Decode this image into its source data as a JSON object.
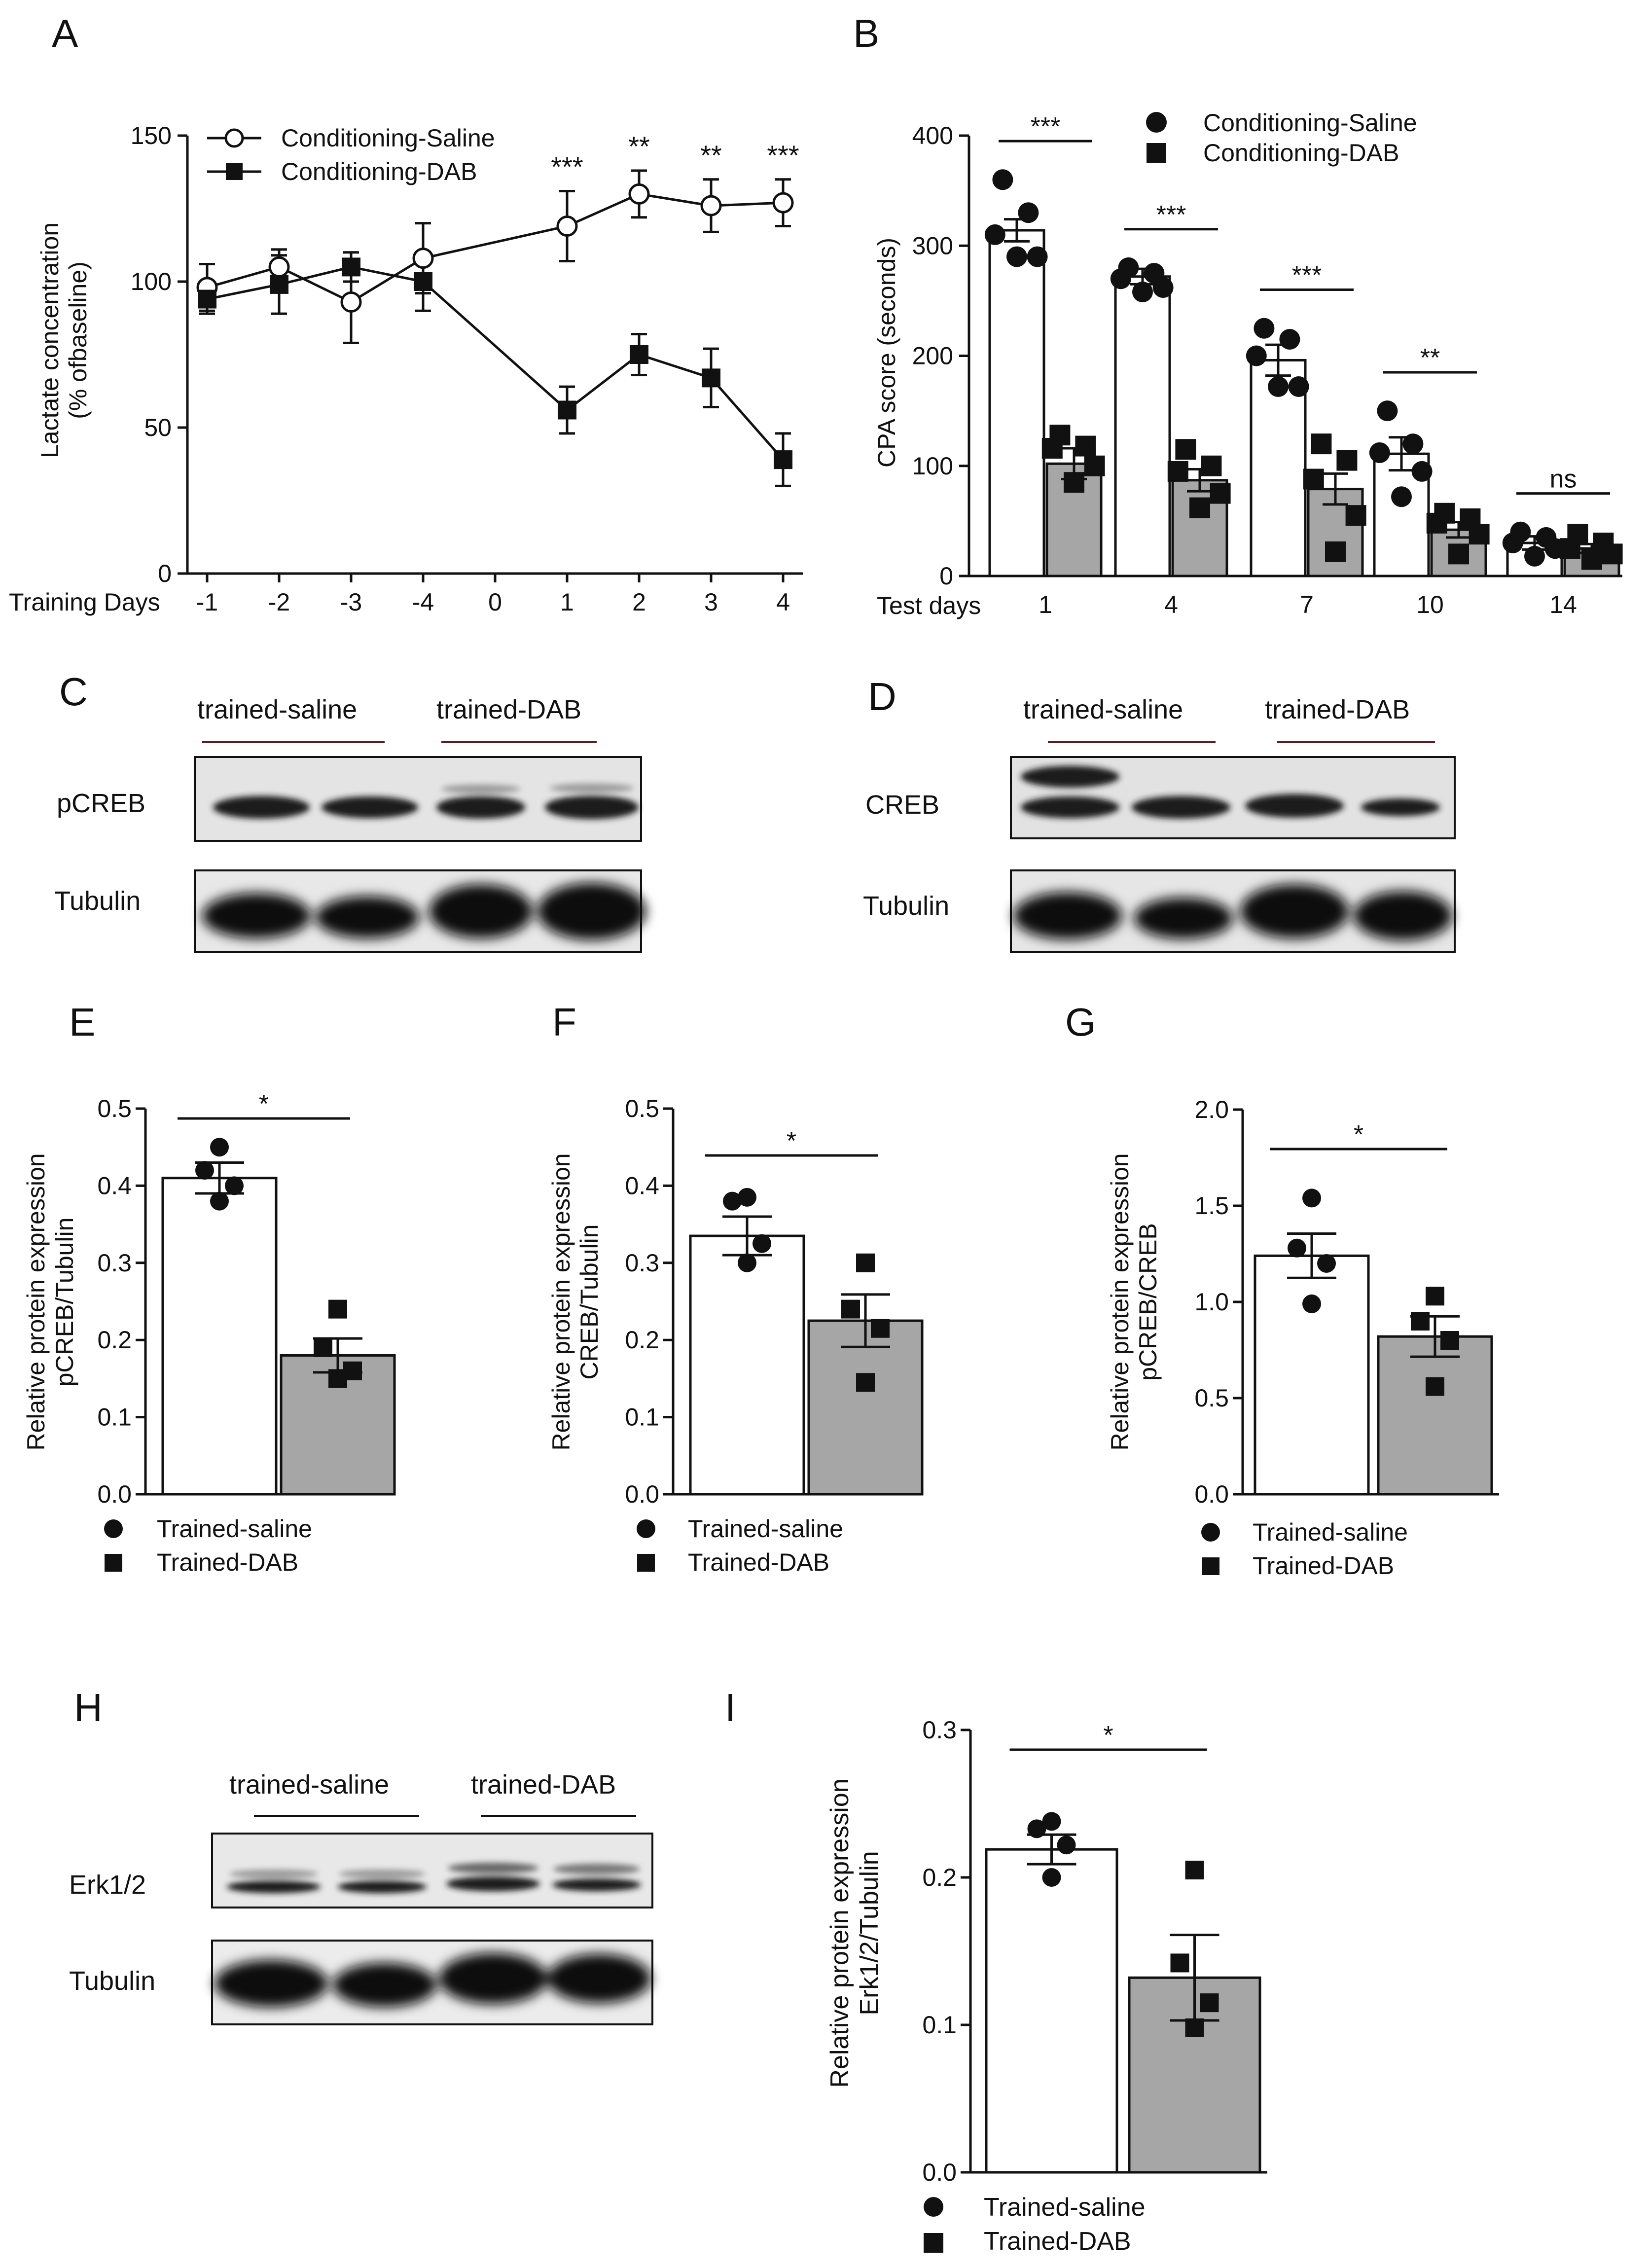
{
  "figure": {
    "panel_labels": [
      "A",
      "B",
      "C",
      "D",
      "E",
      "F",
      "G",
      "H",
      "I"
    ]
  },
  "colors": {
    "ink": "#111111",
    "gray_bar": "#a6a6a6",
    "white_bar": "#ffffff"
  },
  "chart_data": [
    {
      "panel": "A",
      "type": "line",
      "ylabel_lines": [
        "Lactate concentration",
        "(% ofbaseline)"
      ],
      "xlabel": "Training Days",
      "categories": [
        "-1",
        "-2",
        "-3",
        "-4",
        "0",
        "1",
        "2",
        "3",
        "4"
      ],
      "ylim": [
        0,
        150
      ],
      "yticks": [
        0,
        50,
        100,
        150
      ],
      "series": [
        {
          "name": "Conditioning-Saline",
          "marker": "open-circle",
          "x": [
            "-1",
            "-2",
            "-3",
            "-4",
            "1",
            "2",
            "3",
            "4"
          ],
          "values": [
            98,
            105,
            93,
            108,
            119,
            130,
            126,
            127
          ],
          "err": [
            8,
            6,
            14,
            12,
            12,
            8,
            9,
            8
          ]
        },
        {
          "name": "Conditioning-DAB",
          "marker": "filled-square",
          "x": [
            "-1",
            "-2",
            "-3",
            "-4",
            "1",
            "2",
            "3",
            "4"
          ],
          "values": [
            94,
            99,
            105,
            100,
            56,
            75,
            67,
            39
          ],
          "err": [
            5,
            10,
            5,
            10,
            8,
            7,
            10,
            9
          ]
        }
      ],
      "annotations": [
        {
          "x": "1",
          "text": "***"
        },
        {
          "x": "2",
          "text": "**"
        },
        {
          "x": "3",
          "text": "**"
        },
        {
          "x": "4",
          "text": "***"
        }
      ]
    },
    {
      "panel": "B",
      "type": "bar",
      "ylabel": "CPA score (seconds)",
      "xlabel": "Test days",
      "categories": [
        "1",
        "4",
        "7",
        "10",
        "14"
      ],
      "ylim": [
        0,
        400
      ],
      "yticks": [
        0,
        100,
        200,
        300,
        400
      ],
      "series": [
        {
          "name": "Conditioning-Saline",
          "marker": "filled-circle",
          "fill": "white",
          "values": [
            314,
            272,
            196,
            111,
            30
          ],
          "err": [
            10,
            7,
            14,
            15,
            6
          ],
          "points": [
            [
              360,
              330,
              310,
              290,
              290
            ],
            [
              280,
              275,
              270,
              262,
              258
            ],
            [
              225,
              215,
              200,
              172,
              172
            ],
            [
              150,
              120,
              112,
              95,
              72
            ],
            [
              40,
              35,
              30,
              25,
              18
            ]
          ]
        },
        {
          "name": "Conditioning-DAB",
          "marker": "filled-square",
          "fill": "gray",
          "values": [
            102,
            87,
            79,
            42,
            25
          ],
          "err": [
            14,
            10,
            14,
            7,
            4
          ],
          "points": [
            [
              128,
              118,
              116,
              100,
              85
            ],
            [
              115,
              100,
              95,
              75,
              62
            ],
            [
              120,
              105,
              88,
              55,
              22
            ],
            [
              57,
              52,
              48,
              38,
              20
            ],
            [
              38,
              30,
              25,
              20,
              15
            ]
          ]
        }
      ],
      "annotations": [
        {
          "x": "1",
          "text": "***"
        },
        {
          "x": "4",
          "text": "***"
        },
        {
          "x": "7",
          "text": "***"
        },
        {
          "x": "10",
          "text": "**"
        },
        {
          "x": "14",
          "text": "ns"
        }
      ]
    },
    {
      "panel": "E",
      "type": "bar",
      "ylabel_lines": [
        "Relative protein expression",
        "pCREB/Tubulin"
      ],
      "ylim": [
        0,
        0.5
      ],
      "yticks": [
        "0.0",
        "0.1",
        "0.2",
        "0.3",
        "0.4",
        "0.5"
      ],
      "series": [
        {
          "name": "Trained-saline",
          "marker": "filled-circle",
          "fill": "white",
          "value": 0.41,
          "err": 0.02,
          "points": [
            0.45,
            0.42,
            0.4,
            0.38
          ]
        },
        {
          "name": "Trained-DAB",
          "marker": "filled-square",
          "fill": "gray",
          "value": 0.18,
          "err": 0.022,
          "points": [
            0.24,
            0.19,
            0.16,
            0.15
          ]
        }
      ],
      "significance": "*"
    },
    {
      "panel": "F",
      "type": "bar",
      "ylabel_lines": [
        "Relative protein expression",
        "CREB/Tubulin"
      ],
      "ylim": [
        0,
        0.5
      ],
      "yticks": [
        "0.0",
        "0.1",
        "0.2",
        "0.3",
        "0.4",
        "0.5"
      ],
      "series": [
        {
          "name": "Trained-saline",
          "marker": "filled-circle",
          "fill": "white",
          "value": 0.335,
          "err": 0.025,
          "points": [
            0.385,
            0.38,
            0.325,
            0.3
          ]
        },
        {
          "name": "Trained-DAB",
          "marker": "filled-square",
          "fill": "gray",
          "value": 0.225,
          "err": 0.034,
          "points": [
            0.3,
            0.24,
            0.215,
            0.145
          ]
        }
      ],
      "significance": "*"
    },
    {
      "panel": "G",
      "type": "bar",
      "ylabel_lines": [
        "Relative protein expression",
        "pCREB/CREB"
      ],
      "ylim": [
        0,
        2.0
      ],
      "yticks": [
        "0.0",
        "0.5",
        "1.0",
        "1.5",
        "2.0"
      ],
      "series": [
        {
          "name": "Trained-saline",
          "marker": "filled-circle",
          "fill": "white",
          "value": 1.24,
          "err": 0.115,
          "points": [
            1.54,
            1.28,
            1.2,
            0.99
          ]
        },
        {
          "name": "Trained-DAB",
          "marker": "filled-square",
          "fill": "gray",
          "value": 0.82,
          "err": 0.105,
          "points": [
            1.03,
            0.9,
            0.8,
            0.56
          ]
        }
      ],
      "significance": "*"
    },
    {
      "panel": "I",
      "type": "bar",
      "ylabel_lines": [
        "Relative protein expression",
        "Erk1/2/Tubulin"
      ],
      "ylim": [
        0,
        0.3
      ],
      "yticks": [
        "0.0",
        "0.1",
        "0.2",
        "0.3"
      ],
      "series": [
        {
          "name": "Trained-saline",
          "marker": "filled-circle",
          "fill": "white",
          "value": 0.219,
          "err": 0.01,
          "points": [
            0.238,
            0.233,
            0.222,
            0.2
          ]
        },
        {
          "name": "Trained-DAB",
          "marker": "filled-square",
          "fill": "gray",
          "value": 0.132,
          "err": 0.029,
          "points": [
            0.205,
            0.142,
            0.115,
            0.098
          ]
        }
      ],
      "significance": "*"
    }
  ],
  "blots": [
    {
      "panel": "C",
      "group_labels": [
        "trained-saline",
        "trained-DAB"
      ],
      "rows": [
        "pCREB",
        "Tubulin"
      ]
    },
    {
      "panel": "D",
      "group_labels": [
        "trained-saline",
        "trained-DAB"
      ],
      "rows": [
        "CREB",
        "Tubulin"
      ]
    },
    {
      "panel": "H",
      "group_labels": [
        "trained-saline",
        "trained-DAB"
      ],
      "rows": [
        "Erk1/2",
        "Tubulin"
      ]
    }
  ]
}
